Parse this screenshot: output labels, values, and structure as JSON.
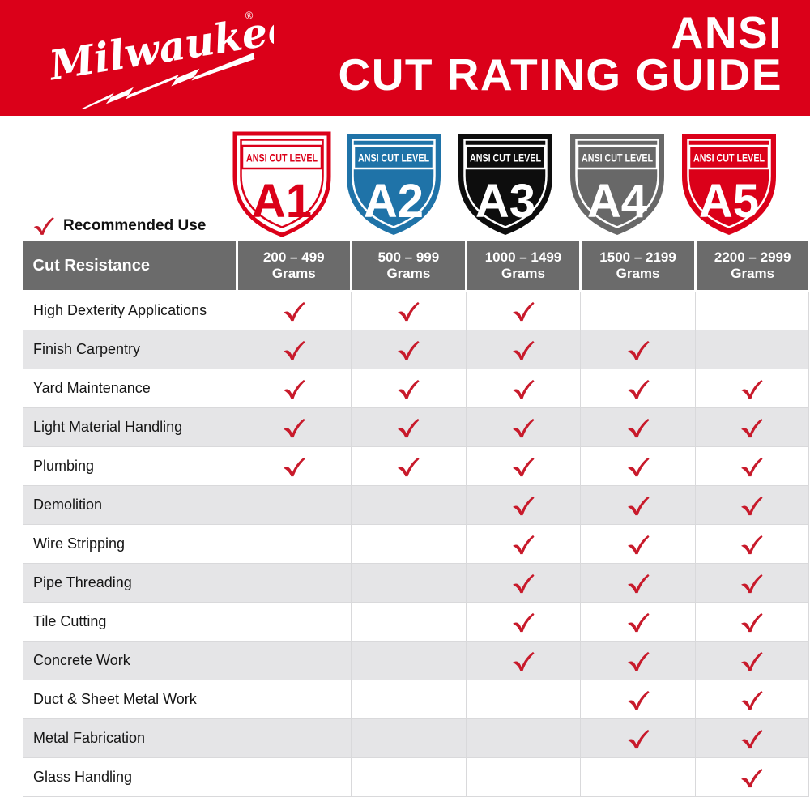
{
  "header": {
    "brand": "Milwaukee",
    "brand_reg": "®",
    "title_line1": "ANSI",
    "title_line2": "CUT RATING GUIDE"
  },
  "legend": {
    "label": "Recommended Use"
  },
  "shields": [
    {
      "level": "A1",
      "banner": "ANSI CUT LEVEL",
      "fill": "#FFFFFF",
      "accent": "#DB0019"
    },
    {
      "level": "A2",
      "banner": "ANSI CUT LEVEL",
      "fill": "#1F73A8",
      "accent": "#FFFFFF"
    },
    {
      "level": "A3",
      "banner": "ANSI CUT LEVEL",
      "fill": "#0D0D0D",
      "accent": "#FFFFFF"
    },
    {
      "level": "A4",
      "banner": "ANSI CUT LEVEL",
      "fill": "#686868",
      "accent": "#FFFFFF"
    },
    {
      "level": "A5",
      "banner": "ANSI CUT LEVEL",
      "fill": "#DB0019",
      "accent": "#FFFFFF"
    }
  ],
  "table": {
    "corner_header": "Cut Resistance",
    "columns": [
      {
        "level": "A1",
        "range": "200 – 499",
        "unit": "Grams"
      },
      {
        "level": "A2",
        "range": "500 – 999",
        "unit": "Grams"
      },
      {
        "level": "A3",
        "range": "1000 – 1499",
        "unit": "Grams"
      },
      {
        "level": "A4",
        "range": "1500 – 2199",
        "unit": "Grams"
      },
      {
        "level": "A5",
        "range": "2200 – 2999",
        "unit": "Grams"
      }
    ],
    "rows": [
      {
        "label": "High Dexterity Applications",
        "checks": [
          true,
          true,
          true,
          false,
          false
        ]
      },
      {
        "label": "Finish Carpentry",
        "checks": [
          true,
          true,
          true,
          true,
          false
        ]
      },
      {
        "label": "Yard Maintenance",
        "checks": [
          true,
          true,
          true,
          true,
          true
        ]
      },
      {
        "label": "Light Material Handling",
        "checks": [
          true,
          true,
          true,
          true,
          true
        ]
      },
      {
        "label": "Plumbing",
        "checks": [
          true,
          true,
          true,
          true,
          true
        ]
      },
      {
        "label": "Demolition",
        "checks": [
          false,
          false,
          true,
          true,
          true
        ]
      },
      {
        "label": "Wire Stripping",
        "checks": [
          false,
          false,
          true,
          true,
          true
        ]
      },
      {
        "label": "Pipe Threading",
        "checks": [
          false,
          false,
          true,
          true,
          true
        ]
      },
      {
        "label": "Tile Cutting",
        "checks": [
          false,
          false,
          true,
          true,
          true
        ]
      },
      {
        "label": "Concrete Work",
        "checks": [
          false,
          false,
          true,
          true,
          true
        ]
      },
      {
        "label": "Duct & Sheet Metal Work",
        "checks": [
          false,
          false,
          false,
          true,
          true
        ]
      },
      {
        "label": "Metal Fabrication",
        "checks": [
          false,
          false,
          false,
          true,
          true
        ]
      },
      {
        "label": "Glass Handling",
        "checks": [
          false,
          false,
          false,
          false,
          true
        ]
      }
    ]
  },
  "colors": {
    "brand_red": "#DB0019",
    "check_red": "#C81A2B",
    "header_gray": "#6B6B6B",
    "row_alt": "#E5E5E7",
    "border_gray": "#D9D9DB",
    "shield_blue": "#1F73A8",
    "shield_black": "#0D0D0D",
    "shield_gray": "#686868",
    "white": "#FFFFFF"
  }
}
